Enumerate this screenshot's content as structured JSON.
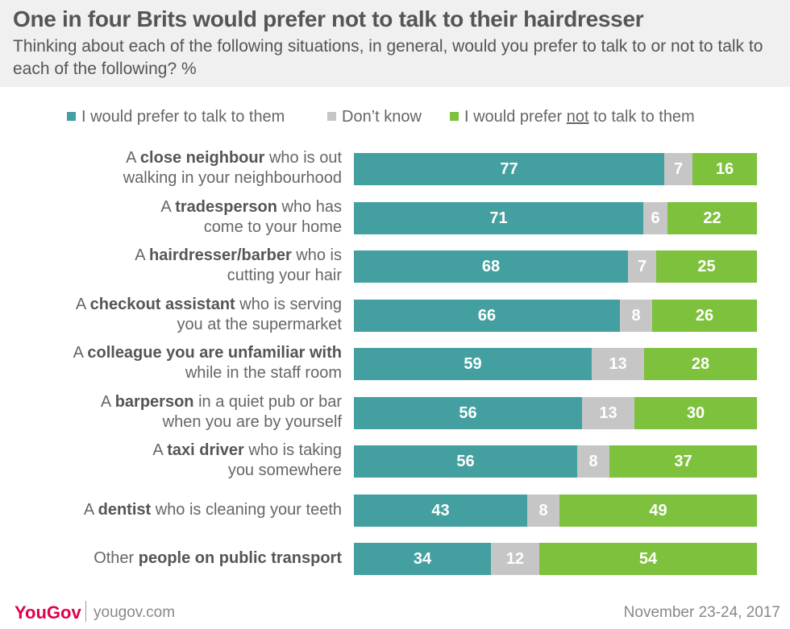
{
  "header": {
    "title": "One in four Brits would prefer not to talk to their hairdresser",
    "subtitle": "Thinking about each of the following situations, in general, would you prefer to talk to or not to talk to each of the following? %"
  },
  "legend": {
    "talk": "I would prefer to talk to them",
    "dont_know": "Don’t know",
    "not_talk_pre": "I would prefer ",
    "not_talk_underlined": "not",
    "not_talk_post": " to talk to them"
  },
  "colors": {
    "talk": "#44a0a0",
    "dont_know": "#c6c6c6",
    "not_talk": "#7dc13c",
    "logo": "#e0004d"
  },
  "chart_data": {
    "type": "bar",
    "orientation": "horizontal",
    "stacked": true,
    "unit": "%",
    "categories": [
      "A close neighbour who is out walking in your neighbourhood",
      "A tradesperson who has come to your home",
      "A hairdresser/barber who is cutting your hair",
      "A checkout assistant who is serving you at the supermarket",
      "A colleague you are unfamiliar with while in the staff room",
      "A barperson in a quiet pub or bar when you are by yourself",
      "A taxi driver who is taking you somewhere",
      "A dentist who is cleaning your teeth",
      "Other people on public transport"
    ],
    "labels": [
      {
        "line1": [
          "A ",
          "close neighbour",
          " who is out"
        ],
        "line2": "walking in your neighbourhood"
      },
      {
        "line1": [
          "A ",
          "tradesperson",
          " who has"
        ],
        "line2": "come to your home"
      },
      {
        "line1": [
          "A ",
          "hairdresser/barber",
          " who is"
        ],
        "line2": "cutting your hair"
      },
      {
        "line1": [
          "A ",
          "checkout assistant",
          " who is serving"
        ],
        "line2": "you at the supermarket"
      },
      {
        "line1": [
          "A ",
          "colleague you are unfamiliar with",
          ""
        ],
        "line2": "while in the staff room"
      },
      {
        "line1": [
          "A ",
          "barperson",
          " in a quiet pub or bar"
        ],
        "line2": "when you are by yourself"
      },
      {
        "line1": [
          "A ",
          "taxi driver",
          " who is taking"
        ],
        "line2": "you somewhere"
      },
      {
        "line1": [
          "A ",
          "dentist",
          " who is cleaning your teeth"
        ],
        "line2": ""
      },
      {
        "line1": [
          "Other ",
          "people on public transport",
          ""
        ],
        "line2": ""
      }
    ],
    "series": [
      {
        "name": "I would prefer to talk to them",
        "values": [
          77,
          71,
          68,
          66,
          59,
          56,
          56,
          43,
          34
        ]
      },
      {
        "name": "Don’t know",
        "values": [
          7,
          6,
          7,
          8,
          13,
          13,
          8,
          8,
          12
        ]
      },
      {
        "name": "I would prefer not to talk to them",
        "values": [
          16,
          22,
          25,
          26,
          28,
          30,
          37,
          49,
          54
        ]
      }
    ]
  },
  "footer": {
    "logo": "YouGov",
    "url": "yougov.com",
    "date": "November 23-24, 2017"
  }
}
